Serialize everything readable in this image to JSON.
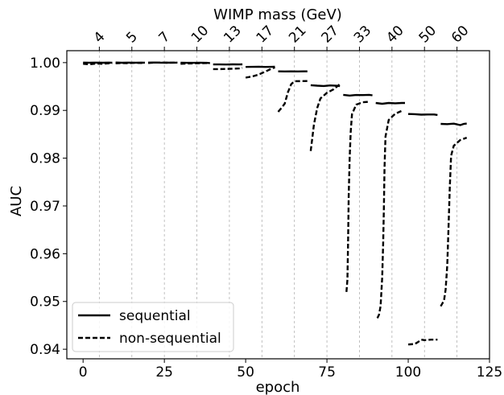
{
  "chart_data": {
    "type": "line",
    "ylabel": "AUC",
    "xlabel": "epoch",
    "top_axis_label": "WIMP mass (GeV)",
    "xlim": [
      -5,
      125
    ],
    "ylim": [
      0.938,
      1.0025
    ],
    "x_ticks": [
      0,
      25,
      50,
      75,
      100,
      125
    ],
    "x_tick_labels": [
      "0",
      "25",
      "50",
      "75",
      "100",
      "125"
    ],
    "y_ticks": [
      0.94,
      0.95,
      0.96,
      0.97,
      0.98,
      0.99,
      1.0
    ],
    "y_tick_labels": [
      "0.94",
      "0.95",
      "0.96",
      "0.97",
      "0.98",
      "0.99",
      "1.00"
    ],
    "top_ticks": [
      5,
      15,
      25,
      35,
      45,
      55,
      65,
      75,
      85,
      95,
      105,
      115
    ],
    "top_tick_labels": [
      "4",
      "5",
      "7",
      "10",
      "13",
      "17",
      "21",
      "27",
      "33",
      "40",
      "50",
      "60"
    ],
    "vertical_grid": true,
    "legend_position": "lower-left",
    "legend": [
      "sequential",
      "non-sequential"
    ],
    "series": [
      {
        "name": "sequential",
        "style": "solid",
        "segments": [
          [
            [
              0,
              1.0
            ],
            [
              2,
              0.99999
            ],
            [
              4,
              1.0
            ],
            [
              6,
              0.99998
            ],
            [
              8,
              1.0
            ],
            [
              9,
              0.99999
            ]
          ],
          [
            [
              10,
              1.00002
            ],
            [
              12,
              0.99998
            ],
            [
              14,
              1.00001
            ],
            [
              16,
              0.99999
            ],
            [
              18,
              1.0
            ],
            [
              19,
              0.99999
            ]
          ],
          [
            [
              20,
              1.0
            ],
            [
              22,
              1.00002
            ],
            [
              24,
              0.99999
            ],
            [
              26,
              1.00001
            ],
            [
              28,
              0.99999
            ],
            [
              29,
              1.0
            ]
          ],
          [
            [
              30,
              0.99997
            ],
            [
              32,
              0.99996
            ],
            [
              34,
              0.99995
            ],
            [
              36,
              0.99998
            ],
            [
              38,
              0.99995
            ],
            [
              39,
              0.9999
            ]
          ],
          [
            [
              40,
              0.99962
            ],
            [
              42,
              0.99962
            ],
            [
              44,
              0.99961
            ],
            [
              46,
              0.99963
            ],
            [
              48,
              0.99962
            ],
            [
              49,
              0.99963
            ]
          ],
          [
            [
              50,
              0.9991
            ],
            [
              52,
              0.99912
            ],
            [
              54,
              0.99915
            ],
            [
              56,
              0.9991
            ],
            [
              58,
              0.99912
            ],
            [
              59,
              0.99913
            ]
          ],
          [
            [
              60,
              0.99818
            ],
            [
              62,
              0.99815
            ],
            [
              64,
              0.99817
            ],
            [
              66,
              0.99815
            ],
            [
              68,
              0.99817
            ],
            [
              69,
              0.99818
            ]
          ],
          [
            [
              70,
              0.99528
            ],
            [
              72,
              0.99518
            ],
            [
              74,
              0.9951
            ],
            [
              76,
              0.99522
            ],
            [
              78,
              0.99515
            ],
            [
              79,
              0.99508
            ]
          ],
          [
            [
              80,
              0.99325
            ],
            [
              82,
              0.9931
            ],
            [
              84,
              0.99322
            ],
            [
              86,
              0.9932
            ],
            [
              88,
              0.99325
            ],
            [
              89,
              0.99315
            ]
          ],
          [
            [
              90,
              0.99155
            ],
            [
              92,
              0.99138
            ],
            [
              94,
              0.99155
            ],
            [
              96,
              0.99148
            ],
            [
              98,
              0.99155
            ],
            [
              99,
              0.99155
            ]
          ],
          [
            [
              100,
              0.98925
            ],
            [
              102,
              0.98922
            ],
            [
              104,
              0.98912
            ],
            [
              106,
              0.98915
            ],
            [
              108,
              0.98915
            ],
            [
              109,
              0.98905
            ]
          ],
          [
            [
              110,
              0.98718
            ],
            [
              112,
              0.98712
            ],
            [
              114,
              0.98722
            ],
            [
              116,
              0.98692
            ],
            [
              117,
              0.98715
            ],
            [
              118,
              0.98725
            ]
          ]
        ]
      },
      {
        "name": "non-sequential",
        "style": "dashed",
        "segments": [
          [
            [
              0,
              0.99975
            ],
            [
              2,
              0.99965
            ],
            [
              4,
              0.9998
            ],
            [
              6,
              0.99975
            ],
            [
              8,
              0.99985
            ],
            [
              9,
              0.9999
            ]
          ],
          [
            [
              10,
              0.99985
            ],
            [
              12,
              0.9999
            ],
            [
              14,
              0.99988
            ],
            [
              16,
              0.99995
            ],
            [
              18,
              0.99993
            ],
            [
              19,
              1.0
            ]
          ],
          [
            [
              20,
              0.99992
            ],
            [
              22,
              1.0
            ],
            [
              24,
              1.0
            ],
            [
              26,
              0.99998
            ],
            [
              28,
              1.0
            ],
            [
              29,
              1.0
            ]
          ],
          [
            [
              30,
              0.99975
            ],
            [
              32,
              0.9998
            ],
            [
              34,
              0.99985
            ],
            [
              36,
              0.99988
            ],
            [
              38,
              0.9999
            ],
            [
              39,
              0.9999
            ]
          ],
          [
            [
              40,
              0.99865
            ],
            [
              42,
              0.99865
            ],
            [
              44,
              0.99868
            ],
            [
              46,
              0.99872
            ],
            [
              48,
              0.99878
            ],
            [
              49,
              0.9989
            ]
          ],
          [
            [
              50,
              0.99685
            ],
            [
              52,
              0.9971
            ],
            [
              54,
              0.9975
            ],
            [
              56,
              0.9981
            ],
            [
              58,
              0.99875
            ],
            [
              59,
              0.999
            ]
          ],
          [
            [
              60,
              0.9897
            ],
            [
              61,
              0.9905
            ],
            [
              62,
              0.9914
            ],
            [
              63,
              0.9938
            ],
            [
              64,
              0.9955
            ],
            [
              65,
              0.9961
            ],
            [
              69,
              0.99615
            ]
          ],
          [
            [
              70,
              0.9815
            ],
            [
              70.5,
              0.9842
            ],
            [
              71,
              0.987
            ],
            [
              72,
              0.9905
            ],
            [
              73,
              0.9925
            ],
            [
              75,
              0.9937
            ],
            [
              77,
              0.9944
            ],
            [
              79,
              0.9955
            ]
          ],
          [
            [
              81,
              0.952
            ],
            [
              81.3,
              0.9545
            ],
            [
              81.5,
              0.962
            ],
            [
              81.7,
              0.972
            ],
            [
              82,
              0.98
            ],
            [
              82.3,
              0.9855
            ],
            [
              82.7,
              0.9892
            ],
            [
              84,
              0.9912
            ],
            [
              86,
              0.9917
            ],
            [
              88,
              0.9918
            ]
          ],
          [
            [
              90.5,
              0.9465
            ],
            [
              91,
              0.9472
            ],
            [
              91.5,
              0.949
            ],
            [
              92,
              0.955
            ],
            [
              92.3,
              0.962
            ],
            [
              92.5,
              0.9695
            ],
            [
              92.7,
              0.978
            ],
            [
              93,
              0.9845
            ],
            [
              94,
              0.988
            ],
            [
              96,
              0.9893
            ],
            [
              98,
              0.9899
            ]
          ],
          [
            [
              100,
              0.941
            ],
            [
              102,
              0.9411
            ],
            [
              103,
              0.9415
            ],
            [
              104,
              0.942
            ],
            [
              105,
              0.9419
            ],
            [
              107,
              0.942
            ],
            [
              109,
              0.942
            ]
          ],
          [
            [
              110,
              0.949
            ],
            [
              111,
              0.9502
            ],
            [
              111.5,
              0.9525
            ],
            [
              112,
              0.9575
            ],
            [
              112.4,
              0.9655
            ],
            [
              112.8,
              0.974
            ],
            [
              113.2,
              0.9805
            ],
            [
              114,
              0.9826
            ],
            [
              116,
              0.9838
            ],
            [
              118,
              0.9843
            ]
          ]
        ]
      }
    ]
  }
}
